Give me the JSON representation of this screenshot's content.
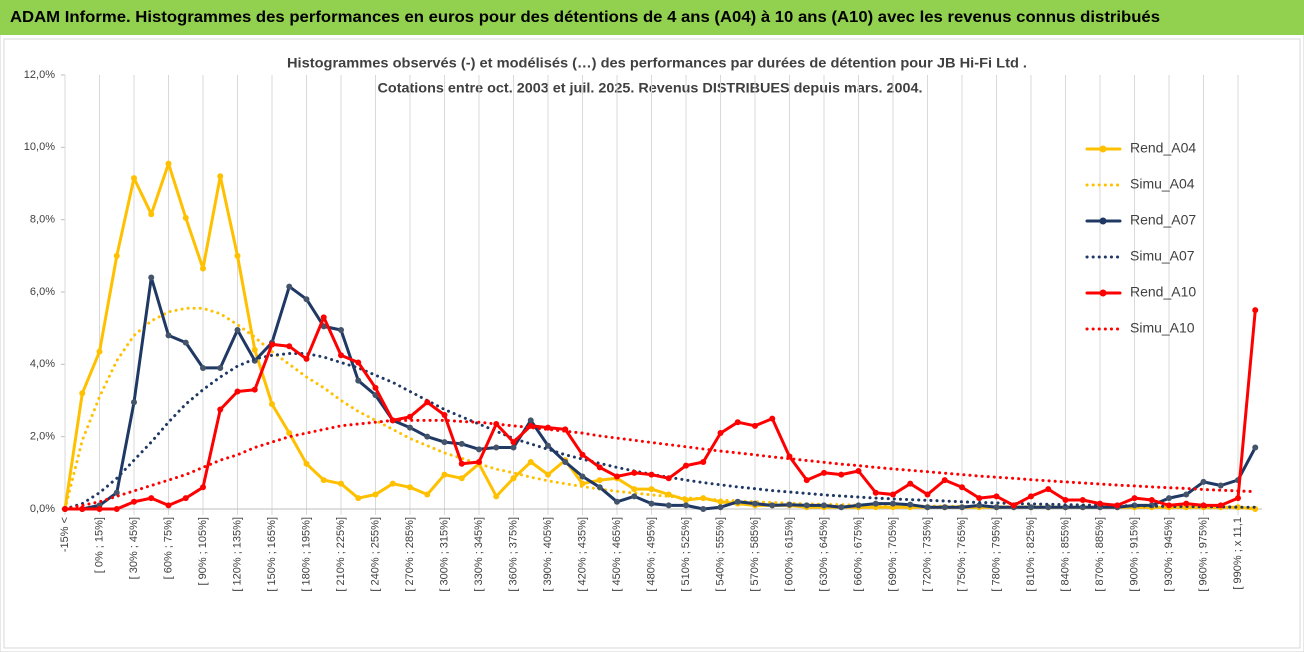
{
  "header": {
    "title": "ADAM Informe. Histogrammes des performances en euros pour des détentions de 4 ans (A04) à 10 ans (A10) avec les revenus connus distribués"
  },
  "chart_data": {
    "type": "line",
    "title": "Histogrammes observés (-) et modélisés (…) des performances par durées de détention pour JB Hi-Fi Ltd .",
    "subtitle": "Cotations entre oct. 2003 et juil. 2025. Revenus DISTRIBUES depuis mars. 2004.",
    "categories": [
      "-15% <",
      null,
      "[ 0% ; 15%]",
      null,
      "[ 30% ; 45%]",
      null,
      "[ 60% ; 75%]",
      null,
      "[ 90% ; 105%]",
      null,
      "[ 120% ; 135%]",
      null,
      "[ 150% ; 165%]",
      null,
      "[ 180% ; 195%]",
      null,
      "[ 210% ; 225%]",
      null,
      "[ 240% ; 255%]",
      null,
      "[ 270% ; 285%]",
      null,
      "[ 300% ; 315%]",
      null,
      "[ 330% ; 345%]",
      null,
      "[ 360% ; 375%]",
      null,
      "[ 390% ; 405%]",
      null,
      "[ 420% ; 435%]",
      null,
      "[ 450% ; 465%]",
      null,
      "[ 480% ; 495%]",
      null,
      "[ 510% ; 525%]",
      null,
      "[ 540% ; 555%]",
      null,
      "[ 570% ; 585%]",
      null,
      "[ 600% ; 615%]",
      null,
      "[ 630% ; 645%]",
      null,
      "[ 660% ; 675%]",
      null,
      "[ 690% ; 705%]",
      null,
      "[ 720% ; 735%]",
      null,
      "[ 750% ; 765%]",
      null,
      "[ 780% ; 795%]",
      null,
      "[ 810% ; 825%]",
      null,
      "[ 840% ; 855%]",
      null,
      "[ 870% ; 885%]",
      null,
      "[ 900% ; 915%]",
      null,
      "[ 930% ; 945%]",
      null,
      "[ 960% ; 975%]",
      null,
      "[ 990% ; x 11,1",
      null
    ],
    "series": [
      {
        "name": "Rend_A04",
        "color": "#ffc000",
        "line_style": "solid",
        "marker": "circle",
        "values": [
          0,
          3.2,
          4.35,
          7.0,
          9.15,
          8.15,
          9.55,
          8.05,
          6.65,
          9.2,
          7.0,
          4.4,
          2.9,
          2.1,
          1.25,
          0.8,
          0.7,
          0.3,
          0.4,
          0.7,
          0.6,
          0.4,
          0.95,
          0.85,
          1.25,
          0.35,
          0.85,
          1.3,
          0.95,
          1.35,
          0.7,
          0.8,
          0.85,
          0.55,
          0.55,
          0.4,
          0.25,
          0.3,
          0.2,
          0.15,
          0.1,
          0.1,
          0.1,
          0.05,
          0.05,
          0.05,
          0.05,
          0.05,
          0.05,
          0.05,
          0.05,
          0.05,
          0.05,
          0.05,
          0.05,
          0.05,
          0.05,
          0.05,
          0.05,
          0.05,
          0.05,
          0.05,
          0.05,
          0.05,
          0.05,
          0.05,
          0.05,
          0.05,
          0.05,
          0
        ]
      },
      {
        "name": "Simu_A04",
        "color": "#ffc000",
        "line_style": "dotted",
        "values": [
          0,
          1.9,
          3.1,
          4.1,
          4.8,
          5.2,
          5.45,
          5.55,
          5.55,
          5.4,
          5.1,
          4.75,
          4.35,
          4.0,
          3.65,
          3.35,
          3.0,
          2.7,
          2.45,
          2.2,
          1.95,
          1.75,
          1.55,
          1.4,
          1.25,
          1.1,
          1.0,
          0.88,
          0.78,
          0.7,
          0.62,
          0.55,
          0.49,
          0.44,
          0.39,
          0.35,
          0.31,
          0.28,
          0.25,
          0.22,
          0.2,
          0.18,
          0.16,
          0.14,
          0.13,
          0.12,
          0.11,
          0.1,
          0.09,
          0.09,
          0.08,
          0.08,
          0.07,
          0.07,
          0.06,
          0.06,
          0.06,
          0.05,
          0.05,
          0.05,
          0.05,
          0.04,
          0.04,
          0.04,
          0.04,
          0.03,
          0.03,
          0.03,
          0.03,
          0.03
        ]
      },
      {
        "name": "Rend_A07",
        "color": "#1f3864",
        "line_style": "solid",
        "marker": "circle",
        "values": [
          0,
          0,
          0.1,
          0.45,
          2.95,
          6.4,
          4.8,
          4.6,
          3.9,
          3.9,
          4.95,
          4.1,
          4.6,
          6.15,
          5.8,
          5.05,
          4.95,
          3.55,
          3.15,
          2.45,
          2.25,
          2.0,
          1.85,
          1.8,
          1.65,
          1.7,
          1.7,
          2.45,
          1.75,
          1.3,
          0.9,
          0.6,
          0.2,
          0.35,
          0.15,
          0.1,
          0.1,
          0.0,
          0.05,
          0.2,
          0.15,
          0.1,
          0.12,
          0.1,
          0.1,
          0.05,
          0.1,
          0.15,
          0.15,
          0.12,
          0.05,
          0.05,
          0.05,
          0.1,
          0.05,
          0.05,
          0.05,
          0.05,
          0.05,
          0.05,
          0.05,
          0.05,
          0.1,
          0.1,
          0.3,
          0.4,
          0.75,
          0.65,
          0.8,
          1.7
        ]
      },
      {
        "name": "Simu_A07",
        "color": "#1f3864",
        "line_style": "dotted",
        "values": [
          0,
          0.15,
          0.45,
          0.85,
          1.35,
          1.85,
          2.4,
          2.9,
          3.3,
          3.65,
          3.95,
          4.15,
          4.25,
          4.3,
          4.3,
          4.2,
          4.05,
          3.9,
          3.7,
          3.5,
          3.25,
          3.0,
          2.75,
          2.55,
          2.35,
          2.15,
          1.95,
          1.8,
          1.65,
          1.5,
          1.38,
          1.26,
          1.15,
          1.05,
          0.96,
          0.88,
          0.8,
          0.73,
          0.67,
          0.61,
          0.56,
          0.51,
          0.47,
          0.43,
          0.39,
          0.36,
          0.33,
          0.3,
          0.28,
          0.26,
          0.24,
          0.22,
          0.2,
          0.18,
          0.17,
          0.15,
          0.14,
          0.13,
          0.12,
          0.11,
          0.1,
          0.09,
          0.09,
          0.08,
          0.07,
          0.07,
          0.06,
          0.06,
          0.05,
          0.05
        ]
      },
      {
        "name": "Rend_A10",
        "color": "#ff0000",
        "line_style": "solid",
        "marker": "circle",
        "values": [
          0,
          0,
          0,
          0,
          0.2,
          0.3,
          0.1,
          0.3,
          0.6,
          2.75,
          3.25,
          3.3,
          4.55,
          4.5,
          4.15,
          5.3,
          4.25,
          4.05,
          3.35,
          2.45,
          2.55,
          2.95,
          2.6,
          1.25,
          1.3,
          2.35,
          1.85,
          2.3,
          2.25,
          2.2,
          1.5,
          1.15,
          0.9,
          1.0,
          0.95,
          0.85,
          1.2,
          1.3,
          2.1,
          2.4,
          2.3,
          2.5,
          1.45,
          0.8,
          1.0,
          0.95,
          1.05,
          0.45,
          0.4,
          0.7,
          0.4,
          0.8,
          0.6,
          0.3,
          0.35,
          0.1,
          0.35,
          0.55,
          0.25,
          0.25,
          0.15,
          0.1,
          0.3,
          0.25,
          0.1,
          0.15,
          0.1,
          0.1,
          0.3,
          5.5
        ]
      },
      {
        "name": "Simu_A10",
        "color": "#ff0000",
        "line_style": "dotted",
        "values": [
          0,
          0.1,
          0.2,
          0.35,
          0.5,
          0.65,
          0.8,
          0.95,
          1.15,
          1.35,
          1.5,
          1.7,
          1.85,
          2.0,
          2.1,
          2.2,
          2.3,
          2.35,
          2.4,
          2.45,
          2.45,
          2.45,
          2.45,
          2.42,
          2.4,
          2.35,
          2.3,
          2.25,
          2.2,
          2.15,
          2.1,
          2.02,
          1.96,
          1.9,
          1.84,
          1.78,
          1.72,
          1.66,
          1.6,
          1.55,
          1.5,
          1.44,
          1.39,
          1.34,
          1.29,
          1.24,
          1.2,
          1.15,
          1.11,
          1.07,
          1.03,
          0.99,
          0.95,
          0.91,
          0.88,
          0.85,
          0.81,
          0.78,
          0.75,
          0.72,
          0.69,
          0.66,
          0.64,
          0.61,
          0.59,
          0.57,
          0.54,
          0.52,
          0.5,
          0.48
        ]
      }
    ],
    "ylim": [
      0,
      12
    ],
    "yticks": [
      {
        "value": 0,
        "label": "0,0%"
      },
      {
        "value": 2,
        "label": "2,0%"
      },
      {
        "value": 4,
        "label": "4,0%"
      },
      {
        "value": 6,
        "label": "6,0%"
      },
      {
        "value": 8,
        "label": "8,0%"
      },
      {
        "value": 10,
        "label": "10,0%"
      },
      {
        "value": 12,
        "label": "12,0%"
      }
    ],
    "grid": "x",
    "legend": "right"
  }
}
